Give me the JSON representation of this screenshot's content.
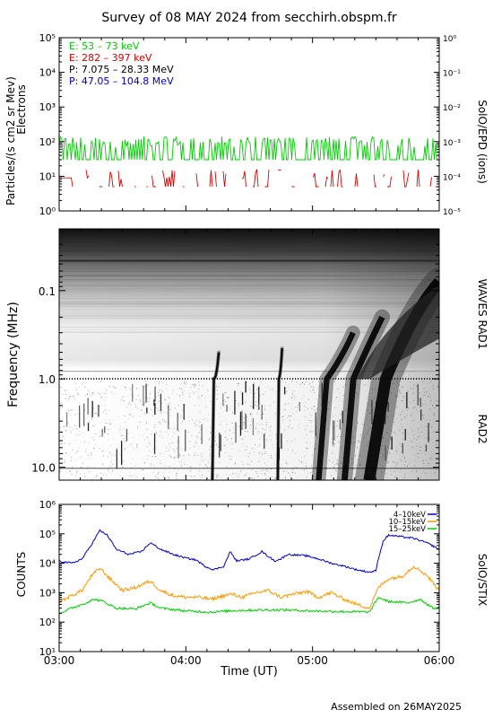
{
  "title": "Survey of 08 MAY 2024 from secchirh.obspm.fr",
  "footer": "Assembled on 26MAY2025",
  "chart_data": [
    {
      "type": "line",
      "panel": "epd",
      "ylabel": "Particles/(s cm2 sr Mev)",
      "ylabel2": "Electrons",
      "right_label": "SolO/EPD (ions)",
      "yscale": "log",
      "ylim": [
        1,
        100000
      ],
      "yticks": [
        "10⁰",
        "10¹",
        "10²",
        "10³",
        "10⁴",
        "10⁵"
      ],
      "y2scale": "log",
      "y2lim": [
        1e-05,
        1
      ],
      "y2ticks": [
        "10⁻⁵",
        "10⁻⁴",
        "10⁻³",
        "10⁻²",
        "10⁻¹",
        "10⁰"
      ],
      "legend_position": "top-left",
      "series": [
        {
          "name": "E: 53 – 73 keV",
          "color": "#00cc00",
          "base": 30,
          "spikes": [
            70,
            140
          ],
          "sparse": 0.55
        },
        {
          "name": "E: 282 – 397 keV",
          "color": "#dd0000",
          "base": 5,
          "spikes": [
            8,
            16
          ],
          "sparse": 0.5
        },
        {
          "name": "P: 7.075 – 28.33 MeV",
          "color": "#000000"
        },
        {
          "name": "P: 47.05 – 104.8 MeV",
          "color": "#0000cc"
        }
      ]
    },
    {
      "type": "heatmap",
      "panel": "waves",
      "ylabel": "Frequency (MHz)",
      "right_labels": [
        "WAVES RAD1",
        "RAD2"
      ],
      "yscale": "log",
      "ylim_reversed": [
        0.02,
        14
      ],
      "ytick_labels": [
        "0.1",
        "1.0",
        "10.0"
      ],
      "ytick_values": [
        0.1,
        1.0,
        10.0
      ],
      "bursts": [
        {
          "start": 4.2,
          "end": 4.26,
          "lo": 0.5
        },
        {
          "start": 4.72,
          "end": 4.76,
          "lo": 0.45
        },
        {
          "start": 5.0,
          "end": 5.32,
          "lo": 0.3
        },
        {
          "start": 5.2,
          "end": 5.55,
          "lo": 0.2
        },
        {
          "start": 5.35,
          "end": 6.0,
          "lo": 0.08
        }
      ]
    },
    {
      "type": "line",
      "panel": "stix",
      "ylabel": "COUNTS",
      "right_label": "SolO/STIX",
      "yscale": "log",
      "ylim": [
        10,
        1000000
      ],
      "yticks": [
        "10¹",
        "10²",
        "10³",
        "10⁴",
        "10⁵",
        "10⁶"
      ],
      "legend_position": "top-right",
      "xlabel": "Time (UT)",
      "xlim": [
        3,
        6
      ],
      "xticks": [
        "03:00",
        "04:00",
        "05:00",
        "06:00"
      ],
      "series": [
        {
          "name": "4–10keV",
          "color": "#0000cc",
          "points": [
            [
              3.0,
              12000
            ],
            [
              3.1,
              10000
            ],
            [
              3.18,
              14000
            ],
            [
              3.25,
              40000
            ],
            [
              3.32,
              130000
            ],
            [
              3.38,
              90000
            ],
            [
              3.45,
              30000
            ],
            [
              3.55,
              20000
            ],
            [
              3.65,
              25000
            ],
            [
              3.72,
              50000
            ],
            [
              3.8,
              30000
            ],
            [
              3.9,
              20000
            ],
            [
              4.0,
              15000
            ],
            [
              4.08,
              13000
            ],
            [
              4.15,
              8000
            ],
            [
              4.22,
              6000
            ],
            [
              4.3,
              8000
            ],
            [
              4.35,
              25000
            ],
            [
              4.4,
              12000
            ],
            [
              4.5,
              14000
            ],
            [
              4.6,
              25000
            ],
            [
              4.7,
              12000
            ],
            [
              4.75,
              14000
            ],
            [
              4.8,
              20000
            ],
            [
              4.95,
              18000
            ],
            [
              5.05,
              14000
            ],
            [
              5.15,
              10000
            ],
            [
              5.25,
              8000
            ],
            [
              5.35,
              6000
            ],
            [
              5.45,
              5000
            ],
            [
              5.5,
              5500
            ],
            [
              5.52,
              15000
            ],
            [
              5.56,
              60000
            ],
            [
              5.6,
              90000
            ],
            [
              5.7,
              80000
            ],
            [
              5.8,
              70000
            ],
            [
              5.9,
              50000
            ],
            [
              6.0,
              30000
            ]
          ]
        },
        {
          "name": "10–15keV",
          "color": "#ff9900",
          "points": [
            [
              3.0,
              500
            ],
            [
              3.1,
              800
            ],
            [
              3.18,
              1200
            ],
            [
              3.25,
              3500
            ],
            [
              3.32,
              7000
            ],
            [
              3.4,
              3000
            ],
            [
              3.5,
              1200
            ],
            [
              3.6,
              1500
            ],
            [
              3.72,
              2500
            ],
            [
              3.8,
              1200
            ],
            [
              3.9,
              800
            ],
            [
              4.0,
              700
            ],
            [
              4.1,
              700
            ],
            [
              4.2,
              600
            ],
            [
              4.3,
              800
            ],
            [
              4.36,
              900
            ],
            [
              4.45,
              700
            ],
            [
              4.55,
              1000
            ],
            [
              4.65,
              1200
            ],
            [
              4.75,
              700
            ],
            [
              4.85,
              900
            ],
            [
              4.95,
              1100
            ],
            [
              5.05,
              700
            ],
            [
              5.15,
              1000
            ],
            [
              5.25,
              600
            ],
            [
              5.35,
              400
            ],
            [
              5.45,
              300
            ],
            [
              5.52,
              1500
            ],
            [
              5.6,
              3000
            ],
            [
              5.7,
              3500
            ],
            [
              5.8,
              8000
            ],
            [
              5.9,
              4000
            ],
            [
              6.0,
              1200
            ]
          ]
        },
        {
          "name": "15–25keV",
          "color": "#00cc00",
          "points": [
            [
              3.0,
              200
            ],
            [
              3.1,
              300
            ],
            [
              3.18,
              400
            ],
            [
              3.28,
              600
            ],
            [
              3.35,
              500
            ],
            [
              3.45,
              300
            ],
            [
              3.6,
              280
            ],
            [
              3.72,
              450
            ],
            [
              3.8,
              300
            ],
            [
              4.0,
              240
            ],
            [
              4.2,
              220
            ],
            [
              4.4,
              250
            ],
            [
              4.6,
              260
            ],
            [
              4.8,
              260
            ],
            [
              5.0,
              240
            ],
            [
              5.2,
              230
            ],
            [
              5.45,
              220
            ],
            [
              5.52,
              700
            ],
            [
              5.6,
              500
            ],
            [
              5.75,
              450
            ],
            [
              5.85,
              600
            ],
            [
              5.95,
              300
            ],
            [
              6.0,
              300
            ]
          ]
        }
      ]
    }
  ]
}
